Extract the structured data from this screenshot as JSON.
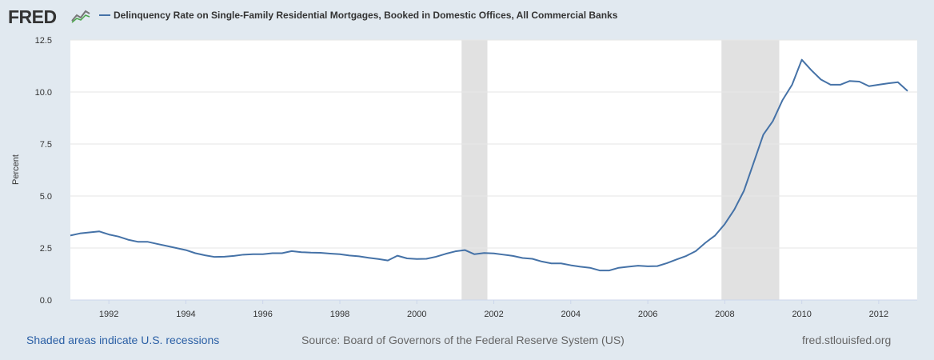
{
  "header": {
    "logo_text": "FRED",
    "logo_icon": "line-chart-icon",
    "series_title": "Delinquency Rate on Single-Family Residential Mortgages, Booked in Domestic Offices, All Commercial Banks"
  },
  "footer": {
    "recession_note": "Shaded areas indicate U.S. recessions",
    "source": "Source: Board of Governors of the Federal Reserve System (US)",
    "url": "fred.stlouisfed.org"
  },
  "colors": {
    "background": "#e1e9f0",
    "plot_background": "#ffffff",
    "line": "#4572a7",
    "recession": "#e1e1e1",
    "grid": "#e6e6e6"
  },
  "chart_data": {
    "type": "line",
    "title": "",
    "xlabel": "",
    "ylabel": "Percent",
    "ylim": [
      0,
      12.5
    ],
    "xlim": [
      "1991-01-01",
      "2012-12-31"
    ],
    "y_ticks": [
      "0.0",
      "2.5",
      "5.0",
      "7.5",
      "10.0",
      "12.5"
    ],
    "x_ticks": [
      "1992",
      "1994",
      "1996",
      "1998",
      "2000",
      "2002",
      "2004",
      "2006",
      "2008",
      "2010",
      "2012"
    ],
    "grid": true,
    "recessions": [
      {
        "start": "2001-03-01",
        "end": "2001-11-01"
      },
      {
        "start": "2007-12-01",
        "end": "2009-06-01"
      }
    ],
    "series": [
      {
        "x": [
          "1991-01-01",
          "1991-04-01",
          "1991-07-01",
          "1991-10-01",
          "1992-01-01",
          "1992-04-01",
          "1992-07-01",
          "1992-10-01",
          "1993-01-01",
          "1993-04-01",
          "1993-07-01",
          "1993-10-01",
          "1994-01-01",
          "1994-04-01",
          "1994-07-01",
          "1994-10-01",
          "1995-01-01",
          "1995-04-01",
          "1995-07-01",
          "1995-10-01",
          "1996-01-01",
          "1996-04-01",
          "1996-07-01",
          "1996-10-01",
          "1997-01-01",
          "1997-04-01",
          "1997-07-01",
          "1997-10-01",
          "1998-01-01",
          "1998-04-01",
          "1998-07-01",
          "1998-10-01",
          "1999-01-01",
          "1999-04-01",
          "1999-07-01",
          "1999-10-01",
          "2000-01-01",
          "2000-04-01",
          "2000-07-01",
          "2000-10-01",
          "2001-01-01",
          "2001-04-01",
          "2001-07-01",
          "2001-10-01",
          "2002-01-01",
          "2002-04-01",
          "2002-07-01",
          "2002-10-01",
          "2003-01-01",
          "2003-04-01",
          "2003-07-01",
          "2003-10-01",
          "2004-01-01",
          "2004-04-01",
          "2004-07-01",
          "2004-10-01",
          "2005-01-01",
          "2005-04-01",
          "2005-07-01",
          "2005-10-01",
          "2006-01-01",
          "2006-04-01",
          "2006-07-01",
          "2006-10-01",
          "2007-01-01",
          "2007-04-01",
          "2007-07-01",
          "2007-10-01",
          "2008-01-01",
          "2008-04-01",
          "2008-07-01",
          "2008-10-01",
          "2009-01-01",
          "2009-04-01",
          "2009-07-01",
          "2009-10-01",
          "2010-01-01",
          "2010-04-01",
          "2010-07-01",
          "2010-10-01",
          "2011-01-01",
          "2011-04-01",
          "2011-07-01",
          "2011-10-01",
          "2012-01-01",
          "2012-04-01",
          "2012-07-01",
          "2012-10-01"
        ],
        "values": [
          3.1,
          3.2,
          3.25,
          3.3,
          3.15,
          3.05,
          2.9,
          2.8,
          2.8,
          2.7,
          2.6,
          2.5,
          2.4,
          2.25,
          2.15,
          2.07,
          2.08,
          2.12,
          2.18,
          2.2,
          2.2,
          2.25,
          2.25,
          2.35,
          2.3,
          2.28,
          2.27,
          2.23,
          2.2,
          2.14,
          2.1,
          2.03,
          1.97,
          1.9,
          2.13,
          2.0,
          1.97,
          1.98,
          2.08,
          2.22,
          2.34,
          2.4,
          2.2,
          2.26,
          2.24,
          2.18,
          2.12,
          2.02,
          1.98,
          1.85,
          1.76,
          1.76,
          1.67,
          1.6,
          1.55,
          1.42,
          1.42,
          1.55,
          1.6,
          1.65,
          1.62,
          1.63,
          1.77,
          1.95,
          2.12,
          2.35,
          2.75,
          3.1,
          3.65,
          4.35,
          5.25,
          6.6,
          7.95,
          8.6,
          9.6,
          10.35,
          11.55,
          11.05,
          10.6,
          10.35,
          10.35,
          10.53,
          10.5,
          10.28,
          10.35,
          10.42,
          10.47,
          10.05
        ]
      }
    ]
  }
}
